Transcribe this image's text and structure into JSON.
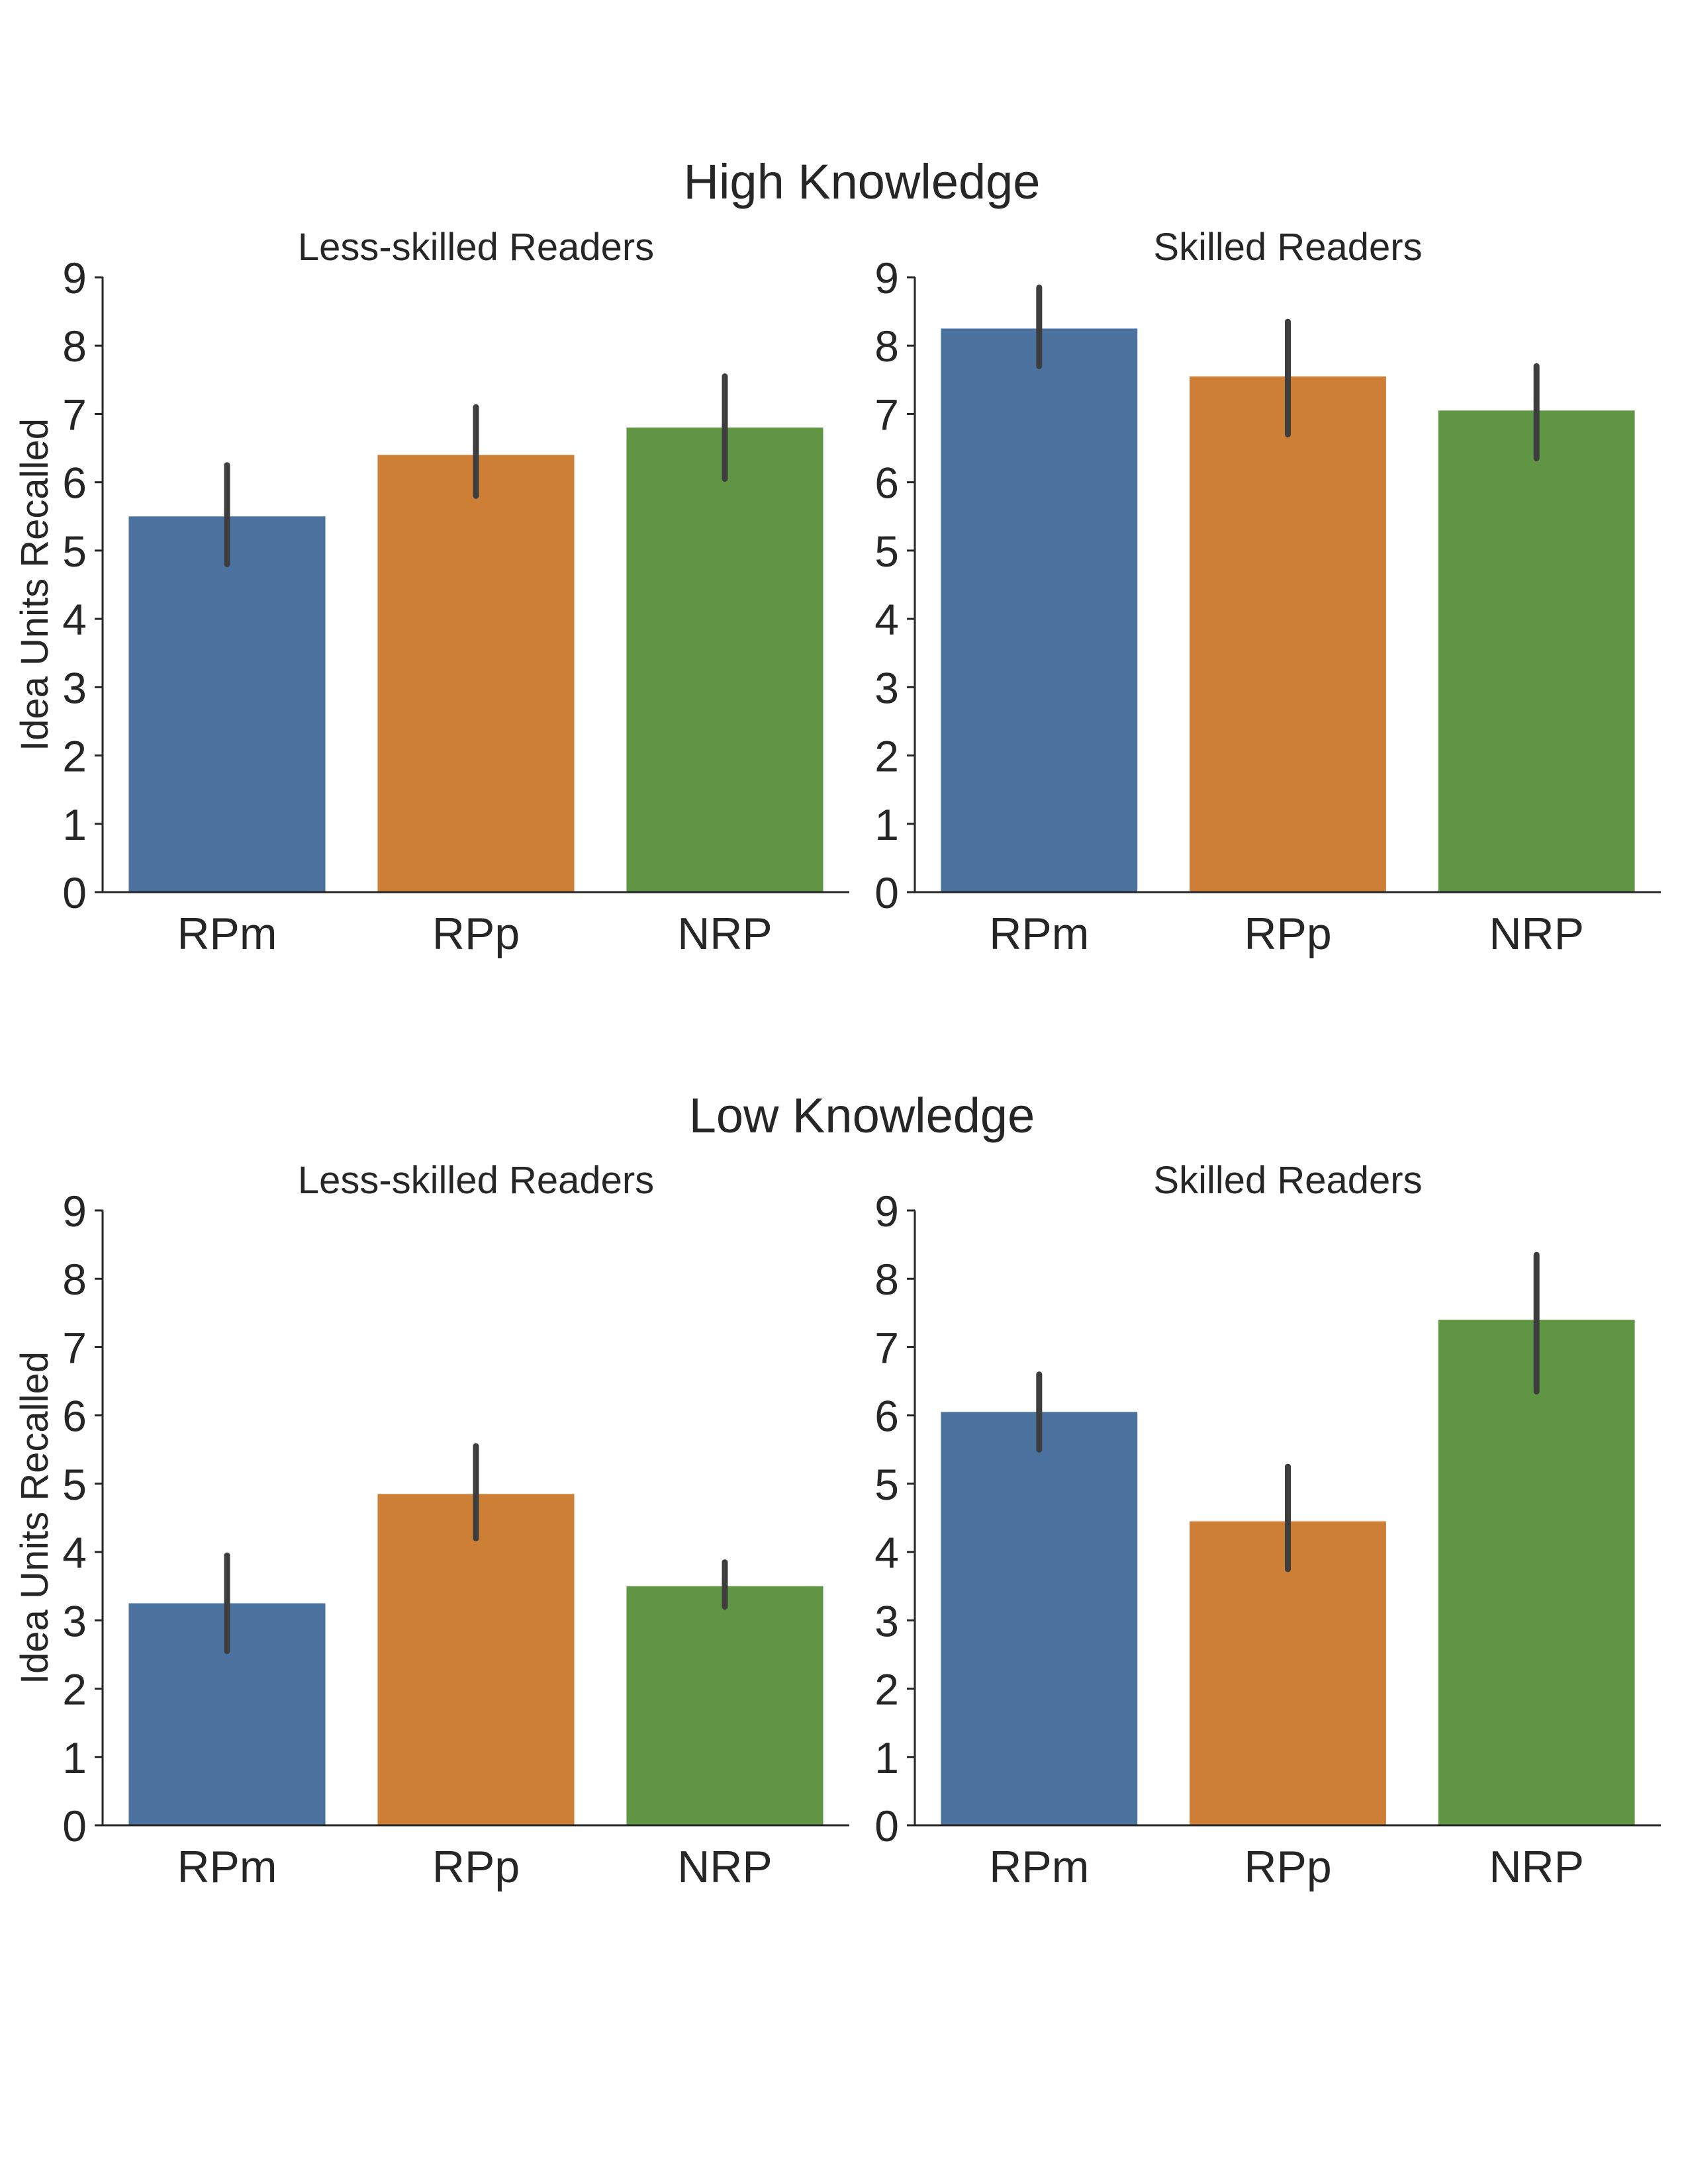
{
  "figure": {
    "groups": [
      {
        "title": "High Knowledge"
      },
      {
        "title": "Low Knowledge"
      }
    ]
  },
  "colors": {
    "RPm": "#4c72a0",
    "RPp": "#cd7f36",
    "NRP": "#5f9543",
    "error_bar": "#3d3d3d",
    "axis": "#262626"
  },
  "chart_data": [
    {
      "type": "bar",
      "group": "High Knowledge",
      "title": "Less-skilled Readers",
      "categories": [
        "RPm",
        "RPp",
        "NRP"
      ],
      "values": [
        5.5,
        6.4,
        6.8
      ],
      "error_low": [
        4.8,
        5.8,
        6.05
      ],
      "error_high": [
        6.25,
        7.1,
        7.55
      ],
      "xlabel": "",
      "ylabel": "Idea Units Recalled",
      "ylim": [
        0,
        9
      ],
      "yticks": [
        0,
        1,
        2,
        3,
        4,
        5,
        6,
        7,
        8,
        9
      ],
      "grid": false
    },
    {
      "type": "bar",
      "group": "High Knowledge",
      "title": "Skilled Readers",
      "categories": [
        "RPm",
        "RPp",
        "NRP"
      ],
      "values": [
        8.25,
        7.55,
        7.05
      ],
      "error_low": [
        7.7,
        6.7,
        6.35
      ],
      "error_high": [
        8.85,
        8.35,
        7.7
      ],
      "xlabel": "",
      "ylabel": "",
      "ylim": [
        0,
        9
      ],
      "yticks": [
        0,
        1,
        2,
        3,
        4,
        5,
        6,
        7,
        8,
        9
      ],
      "grid": false
    },
    {
      "type": "bar",
      "group": "Low Knowledge",
      "title": "Less-skilled Readers",
      "categories": [
        "RPm",
        "RPp",
        "NRP"
      ],
      "values": [
        3.25,
        4.85,
        3.5
      ],
      "error_low": [
        2.55,
        4.2,
        3.2
      ],
      "error_high": [
        3.95,
        5.55,
        3.85
      ],
      "xlabel": "",
      "ylabel": "Idea Units Recalled",
      "ylim": [
        0,
        9
      ],
      "yticks": [
        0,
        1,
        2,
        3,
        4,
        5,
        6,
        7,
        8,
        9
      ],
      "grid": false
    },
    {
      "type": "bar",
      "group": "Low Knowledge",
      "title": "Skilled Readers",
      "categories": [
        "RPm",
        "RPp",
        "NRP"
      ],
      "values": [
        6.05,
        4.45,
        7.4
      ],
      "error_low": [
        5.5,
        3.75,
        6.35
      ],
      "error_high": [
        6.6,
        5.25,
        8.35
      ],
      "xlabel": "",
      "ylabel": "",
      "ylim": [
        0,
        9
      ],
      "yticks": [
        0,
        1,
        2,
        3,
        4,
        5,
        6,
        7,
        8,
        9
      ],
      "grid": false
    }
  ]
}
